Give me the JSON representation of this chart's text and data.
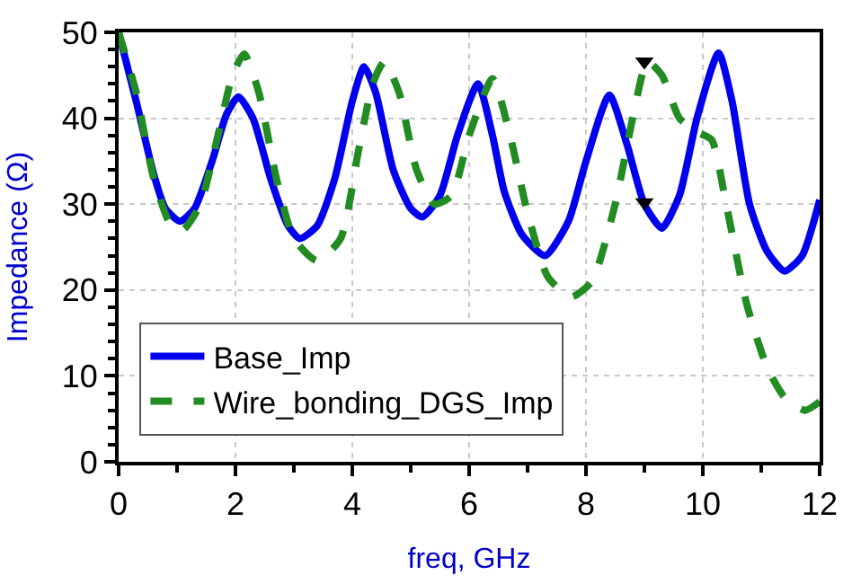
{
  "chart_data": {
    "type": "line",
    "xlabel": "freq, GHz",
    "ylabel": "Impedance (Ω)",
    "xlim": [
      0,
      12
    ],
    "xticks": [
      0,
      2,
      4,
      6,
      8,
      10,
      12
    ],
    "ylim": [
      0,
      50
    ],
    "yticks": [
      0,
      10,
      20,
      30,
      40,
      50
    ],
    "grid": true,
    "legend": "bottom left",
    "series": [
      {
        "name": "Base_Imp",
        "color": "#0000ee",
        "line_style": "solid",
        "x": [
          0,
          0.3,
          0.6,
          0.8,
          1.05,
          1.3,
          1.6,
          1.85,
          2.05,
          2.3,
          2.6,
          2.9,
          3.1,
          3.4,
          3.7,
          4.0,
          4.2,
          4.4,
          4.7,
          5.0,
          5.2,
          5.5,
          5.8,
          6.15,
          6.4,
          6.6,
          6.9,
          7.3,
          7.7,
          8.0,
          8.4,
          8.7,
          9.0,
          9.3,
          9.6,
          9.9,
          10.27,
          10.5,
          10.8,
          11.1,
          11.4,
          11.7,
          12
        ],
        "values": [
          50,
          42,
          33.5,
          29.5,
          28,
          29.5,
          35,
          40.5,
          42.5,
          40,
          33,
          27.5,
          26,
          27.5,
          33,
          42,
          46,
          43,
          34,
          29.5,
          28.5,
          31,
          38,
          44,
          38,
          31.5,
          26.5,
          24,
          28,
          35,
          42.7,
          37,
          30,
          27.2,
          31,
          40,
          47.6,
          42,
          30,
          24.5,
          22.2,
          24,
          30.5
        ]
      },
      {
        "name": "Wire_bonding_DGS_Imp",
        "color": "#228b22",
        "line_style": "dashed",
        "x": [
          0,
          0.3,
          0.6,
          0.9,
          1.1,
          1.4,
          1.7,
          1.95,
          2.15,
          2.4,
          2.7,
          3.0,
          3.4,
          3.8,
          4.1,
          4.35,
          4.55,
          4.8,
          5.1,
          5.4,
          5.7,
          6.0,
          6.4,
          6.7,
          7.0,
          7.35,
          7.75,
          8.1,
          8.5,
          8.8,
          9.05,
          9.3,
          9.6,
          9.9,
          10.15,
          10.4,
          10.75,
          11.1,
          11.4,
          11.75,
          12
        ],
        "values": [
          50,
          43,
          33,
          27.5,
          27,
          30,
          38,
          45,
          47.5,
          43,
          33,
          26,
          23.4,
          26,
          36,
          44,
          46.6,
          43,
          34,
          30,
          31,
          38,
          44.6,
          38,
          29,
          21.5,
          19.2,
          21,
          30,
          40,
          46.6,
          45,
          40,
          38.4,
          37.5,
          30,
          18.4,
          11,
          7.5,
          6,
          7
        ]
      },
      {
        "type": "scatter",
        "marker": "triangle",
        "color": "#000000",
        "x": [
          9,
          9
        ],
        "values": [
          46.6,
          30.2
        ]
      }
    ]
  }
}
